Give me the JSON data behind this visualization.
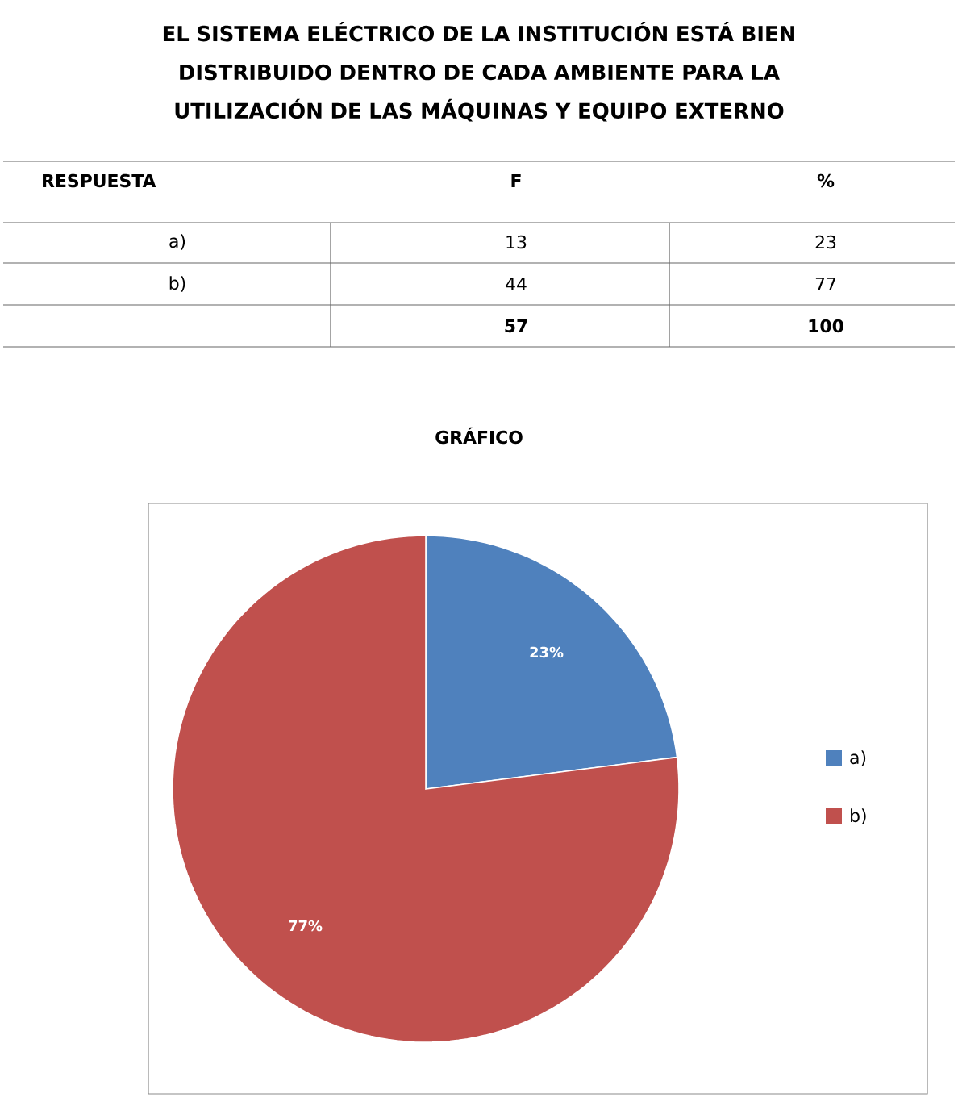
{
  "chart_data": [
    {
      "type": "other",
      "title": "EL SISTEMA ELÉCTRICO DE LA INSTITUCIÓN ESTÁ BIEN DISTRIBUIDO DENTRO DE CADA AMBIENTE PARA LA UTILIZACIÓN DE LAS MÁQUINAS Y EQUIPO EXTERNO",
      "annotations": [
        "RESPUESTA",
        "F",
        "%",
        "a)",
        "13",
        "23",
        "b)",
        "44",
        "77",
        null,
        "57",
        "100"
      ]
    },
    {
      "type": "pie",
      "title": "GRÁFICO",
      "categories": [
        "a)",
        "b)"
      ],
      "values": [
        23,
        77
      ],
      "colors": [
        "#4f81bd",
        "#c0504d"
      ],
      "value_labels": [
        "23%",
        "77%"
      ],
      "legend": "right"
    }
  ]
}
